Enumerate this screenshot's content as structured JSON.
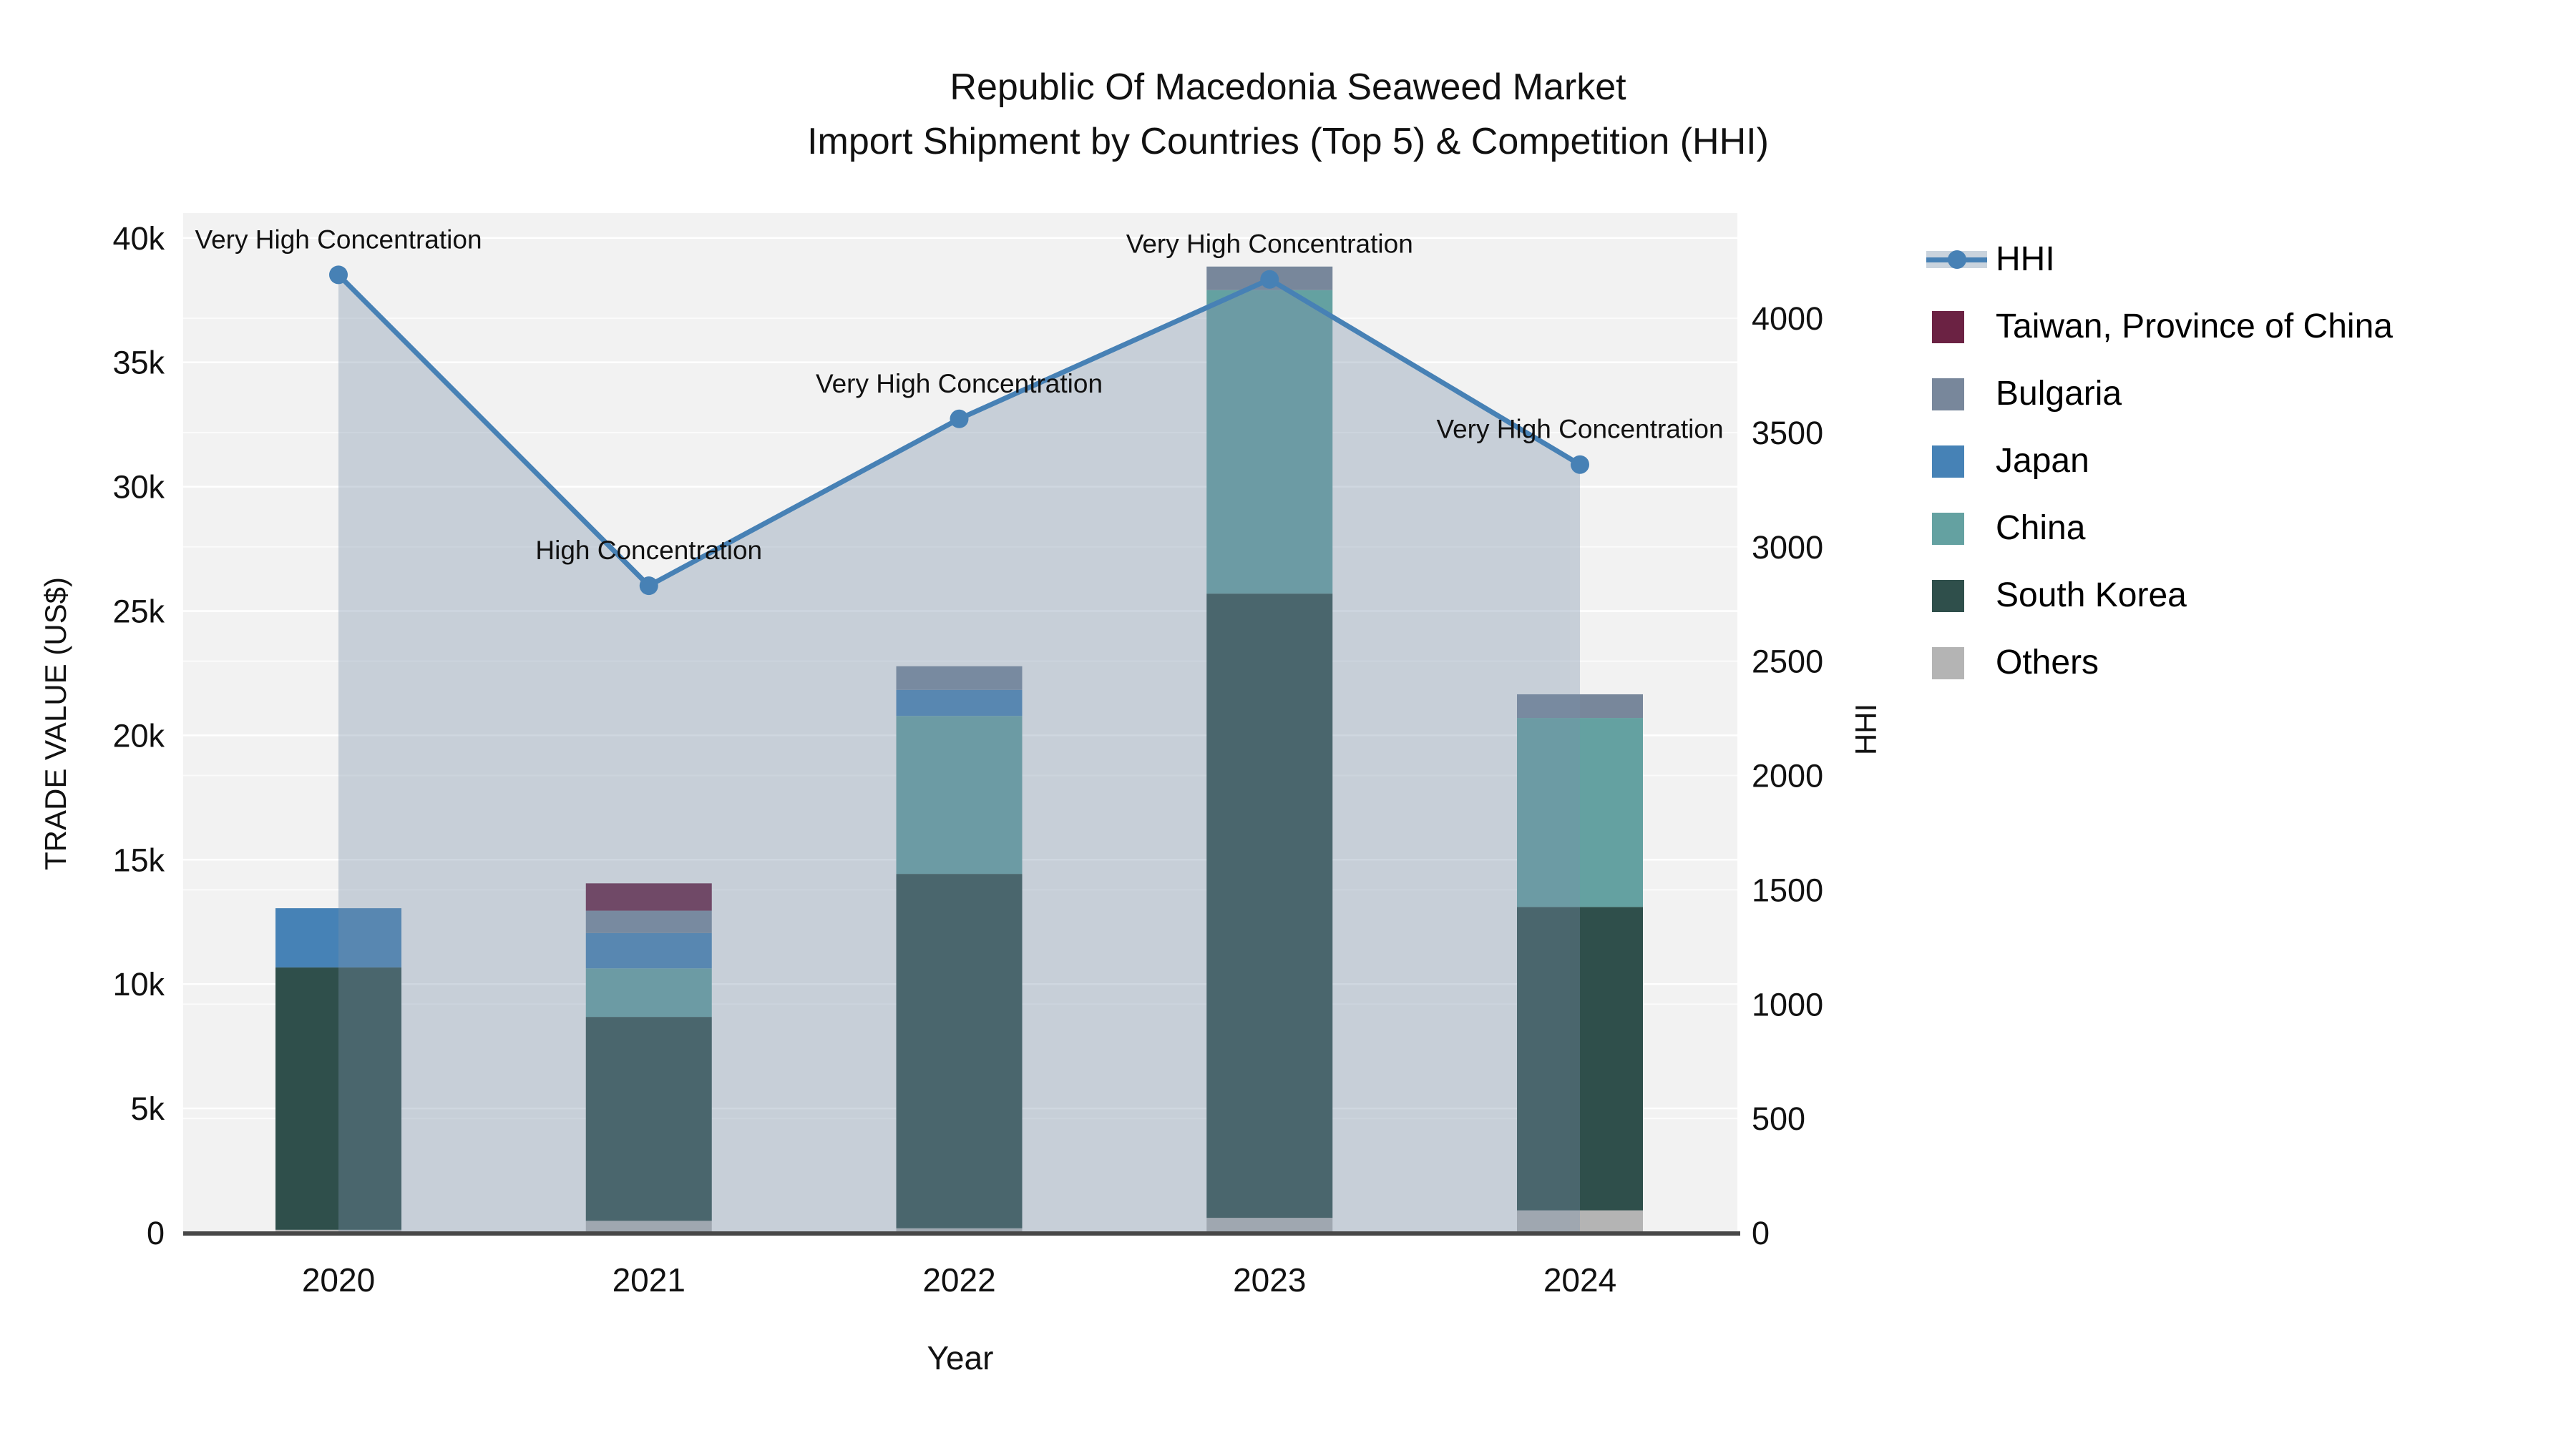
{
  "title": {
    "line1": "Republic Of Macedonia Seaweed Market",
    "line2": "Import Shipment by Countries (Top 5) & Competition (HHI)"
  },
  "colors": {
    "plot_bg": "#f2f2f2",
    "grid_major": "rgba(255,255,255,0.95)",
    "grid_minor": "rgba(255,255,255,0.65)",
    "axis_line": "#474747",
    "text": "#111111",
    "hhi_line": "#4781b5",
    "hhi_fill": "rgba(123,143,169,0.36)"
  },
  "legend": {
    "items": [
      {
        "label": "HHI",
        "color": "#4781b5",
        "type": "line"
      },
      {
        "label": "Taiwan, Province of China",
        "color": "#6b2243",
        "type": "square"
      },
      {
        "label": "Bulgaria",
        "color": "#78879b",
        "type": "square"
      },
      {
        "label": "Japan",
        "color": "#4682b6",
        "type": "square"
      },
      {
        "label": "China",
        "color": "#64a1a1",
        "type": "square"
      },
      {
        "label": "South Korea",
        "color": "#2f4f4b",
        "type": "square"
      },
      {
        "label": "Others",
        "color": "#b4b4b4",
        "type": "square"
      }
    ]
  },
  "chart_data": {
    "type": "bar+line",
    "title": "Republic Of Macedonia Seaweed Market — Import Shipment by Countries (Top 5) & Competition (HHI)",
    "categories": [
      "2020",
      "2021",
      "2022",
      "2023",
      "2024"
    ],
    "stack_order_note": "bar_series listed bottom-to-top of the stack; values in US$",
    "bar_series": [
      {
        "name": "Others",
        "color": "#b4b4b4",
        "values": [
          120,
          480,
          180,
          600,
          900
        ]
      },
      {
        "name": "South Korea",
        "color": "#2f4f4b",
        "values": [
          10550,
          8200,
          14250,
          25100,
          12200
        ]
      },
      {
        "name": "China",
        "color": "#64a1a1",
        "values": [
          0,
          1950,
          6350,
          12200,
          7600
        ]
      },
      {
        "name": "Japan",
        "color": "#4682b6",
        "values": [
          2380,
          1420,
          1050,
          0,
          0
        ]
      },
      {
        "name": "Bulgaria",
        "color": "#78879b",
        "values": [
          0,
          900,
          950,
          950,
          950
        ]
      },
      {
        "name": "Taiwan, Province of China",
        "color": "#6b2243",
        "values": [
          0,
          1100,
          0,
          0,
          0
        ]
      }
    ],
    "line_series": {
      "name": "HHI",
      "values": [
        4190,
        2830,
        3560,
        4170,
        3360
      ]
    },
    "annotations": [
      "Very High Concentration",
      "High Concentration",
      "Very High Concentration",
      "Very High Concentration",
      "Very High Concentration"
    ],
    "axes": {
      "x": {
        "title": "Year"
      },
      "left": {
        "title": "TRADE VALUE (US$)",
        "max": 41000,
        "ticks": [
          {
            "v": 0,
            "label": "0"
          },
          {
            "v": 5000,
            "label": "5k"
          },
          {
            "v": 10000,
            "label": "10k"
          },
          {
            "v": 15000,
            "label": "15k"
          },
          {
            "v": 20000,
            "label": "20k"
          },
          {
            "v": 25000,
            "label": "25k"
          },
          {
            "v": 30000,
            "label": "30k"
          },
          {
            "v": 35000,
            "label": "35k"
          },
          {
            "v": 40000,
            "label": "40k"
          }
        ]
      },
      "right": {
        "title": "HHI",
        "max": 4460,
        "ticks": [
          {
            "v": 0,
            "label": "0"
          },
          {
            "v": 500,
            "label": "500"
          },
          {
            "v": 1000,
            "label": "1000"
          },
          {
            "v": 1500,
            "label": "1500"
          },
          {
            "v": 2000,
            "label": "2000"
          },
          {
            "v": 2500,
            "label": "2500"
          },
          {
            "v": 3000,
            "label": "3000"
          },
          {
            "v": 3500,
            "label": "3500"
          },
          {
            "v": 4000,
            "label": "4000"
          }
        ]
      }
    },
    "legend_position": "right",
    "grid": true
  }
}
